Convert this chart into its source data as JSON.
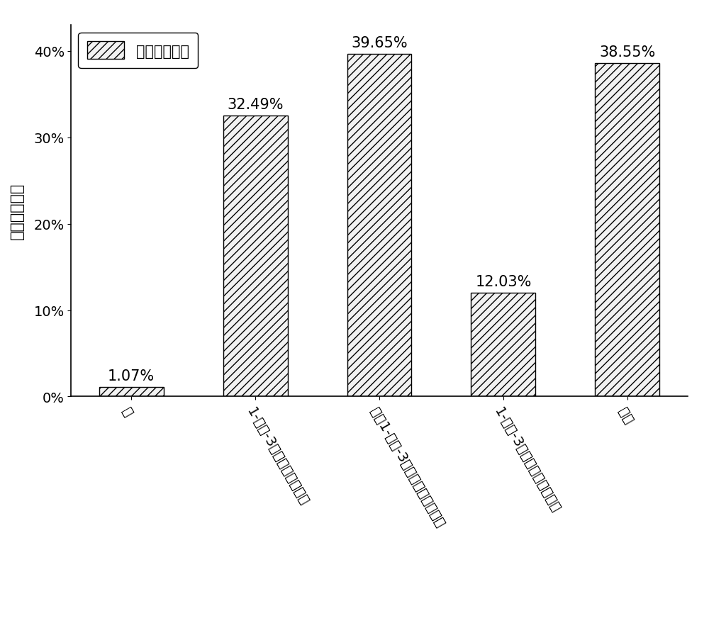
{
  "categories": [
    "无",
    "1-丁基-3甲基咋唰硬酸氢盐",
    "二（1-丁基-3甲基咋唰）磷酸氢盐",
    "1-丁基-3甲基咋唰磷酸二氢盐",
    "硬酸"
  ],
  "values": [
    1.07,
    32.49,
    39.65,
    12.03,
    38.55
  ],
  "labels": [
    "1.07%",
    "32.49%",
    "39.65%",
    "12.03%",
    "38.55%"
  ],
  "ylabel": "生物柴油产率",
  "yticks": [
    0,
    10,
    20,
    30,
    40
  ],
  "ytick_labels": [
    "0%",
    "10%",
    "20%",
    "30%",
    "40%"
  ],
  "ylim": [
    0,
    43
  ],
  "legend_label": "生物柴油产率",
  "bar_facecolor": "#f2f2f2",
  "bar_edgecolor": "#000000",
  "hatch": "///",
  "figsize": [
    10.0,
    9.04
  ],
  "dpi": 100,
  "label_fontsize": 15,
  "tick_fontsize": 14,
  "ylabel_fontsize": 16,
  "legend_fontsize": 15,
  "bar_width": 0.52
}
